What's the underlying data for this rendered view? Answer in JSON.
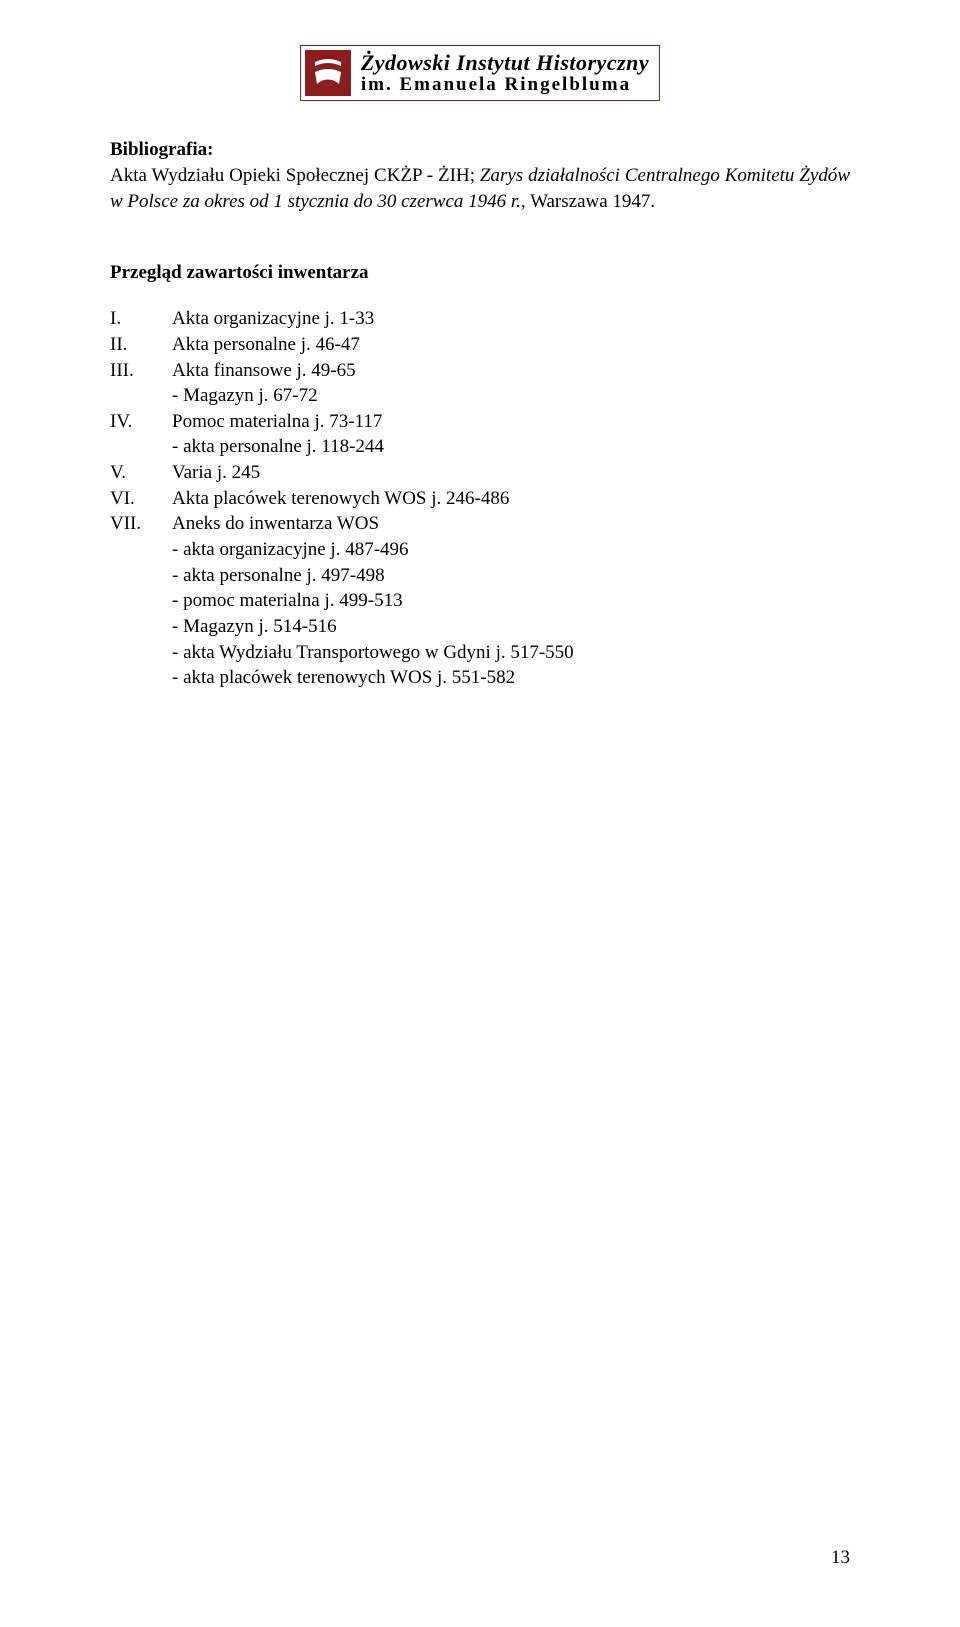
{
  "logo": {
    "line1": "Żydowski Instytut Historyczny",
    "line2": "im. Emanuela Ringelbluma",
    "border_color": "#8a1e1e",
    "mark_bg": "#8a1e1e"
  },
  "biblio": {
    "heading": "Bibliografia:",
    "lead": "Akta Wydziału Opieki Społecznej CKŻP - ŻIH; ",
    "italic": "Zarys działalności Centralnego Komitetu Żydów w Polsce za okres od 1 stycznia do 30 czerwca 1946 r.",
    "tail": ", Warszawa 1947."
  },
  "overview": {
    "heading": "Przegląd zawartości inwentarza",
    "items": [
      {
        "num": "I.",
        "text": "Akta organizacyjne j. 1-33"
      },
      {
        "num": "II.",
        "text": "Akta personalne j. 46-47"
      },
      {
        "num": "III.",
        "text": "Akta finansowe j. 49-65"
      },
      {
        "num": "",
        "text": "- Magazyn j. 67-72",
        "sub": true
      },
      {
        "num": "IV.",
        "text": "Pomoc materialna j. 73-117"
      },
      {
        "num": "",
        "text": "- akta personalne j. 118-244",
        "sub": true
      },
      {
        "num": "V.",
        "text": "Varia j. 245"
      },
      {
        "num": "VI.",
        "text": "Akta placówek terenowych WOS j. 246-486"
      },
      {
        "num": "VII.",
        "text": "Aneks do inwentarza WOS"
      },
      {
        "num": "",
        "text": "- akta organizacyjne j. 487-496",
        "sub": true
      },
      {
        "num": "",
        "text": "- akta personalne j. 497-498",
        "sub": true
      },
      {
        "num": "",
        "text": "- pomoc materialna j. 499-513",
        "sub": true
      },
      {
        "num": "",
        "text": "- Magazyn j. 514-516",
        "sub": true
      },
      {
        "num": "",
        "text": "- akta Wydziału Transportowego w Gdyni j. 517-550",
        "sub": true
      },
      {
        "num": "",
        "text": "- akta placówek terenowych WOS j. 551-582",
        "sub": true
      }
    ]
  },
  "page_number": "13"
}
